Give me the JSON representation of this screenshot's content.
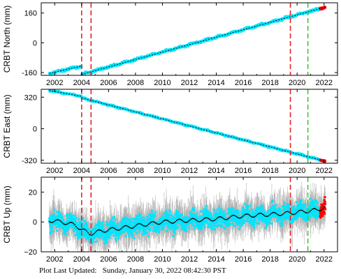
{
  "chart_data": [
    {
      "type": "scatter",
      "ylabel": "CRBT North (mm)",
      "yticks": [
        -160,
        0,
        160
      ],
      "ytick_labels": [
        "-160",
        "0",
        "160"
      ],
      "ylim": [
        -175,
        215
      ],
      "xlim": [
        2001.0,
        2023.0
      ],
      "xticks": [
        2002,
        2004,
        2006,
        2008,
        2010,
        2012,
        2014,
        2016,
        2018,
        2020,
        2022
      ],
      "xtick_labels": [
        "2002",
        "2004",
        "2006",
        "2008",
        "2010",
        "2012",
        "2014",
        "2016",
        "2018",
        "2020",
        "2022"
      ],
      "segments": [
        {
          "x": [
            2001.6,
            2004.0
          ],
          "y": [
            -165,
            -125
          ]
        },
        {
          "x": [
            2004.0,
            2022.1
          ],
          "y": [
            -170,
            192
          ]
        }
      ],
      "noise": 3,
      "point_color": "#00e5ff",
      "trend_color": "#000000",
      "recent_color": "#ff0000",
      "recent_from": 2021.7
    },
    {
      "type": "scatter",
      "ylabel": "CRBT East (mm)",
      "yticks": [
        -320,
        0,
        320
      ],
      "ytick_labels": [
        "-320",
        "0",
        "320"
      ],
      "ylim": [
        -350,
        400
      ],
      "xlim": [
        2001.0,
        2023.0
      ],
      "xticks": [
        2002,
        2004,
        2006,
        2008,
        2010,
        2012,
        2014,
        2016,
        2018,
        2020,
        2022
      ],
      "xtick_labels": [
        "2002",
        "2004",
        "2006",
        "2008",
        "2010",
        "2012",
        "2014",
        "2016",
        "2018",
        "2020",
        "2022"
      ],
      "segments": [
        {
          "x": [
            2001.6,
            2004.0
          ],
          "y": [
            388,
            328
          ]
        },
        {
          "x": [
            2004.0,
            2022.1
          ],
          "y": [
            312,
            -330
          ]
        }
      ],
      "noise": 4,
      "point_color": "#00e5ff",
      "trend_color": "#000000",
      "recent_color": "#ff0000",
      "recent_from": 2021.7
    },
    {
      "type": "scatter",
      "ylabel": "CRBT Up (mm)",
      "yticks": [
        -20,
        0,
        20
      ],
      "ytick_labels": [
        "−20",
        "0",
        "20"
      ],
      "ylim": [
        -20,
        30
      ],
      "xlim": [
        2001.0,
        2023.0
      ],
      "xticks": [
        2002,
        2004,
        2006,
        2008,
        2010,
        2012,
        2014,
        2016,
        2018,
        2020,
        2022
      ],
      "xtick_labels": [
        "2002",
        "2004",
        "2006",
        "2008",
        "2010",
        "2012",
        "2014",
        "2016",
        "2018",
        "2020",
        "2022"
      ],
      "trend": {
        "x": [
          2001.6,
          2002.5,
          2003.5,
          2004.0,
          2004.6,
          2005.5,
          2007,
          2008.5,
          2010,
          2012,
          2014,
          2016,
          2018,
          2019.6,
          2020.5,
          2021.5,
          2022.1
        ],
        "y": [
          1,
          0,
          -2,
          -5,
          -8,
          -6,
          -4,
          -2,
          0,
          1,
          2,
          4,
          5,
          6,
          7,
          8,
          10
        ]
      },
      "seasonal_amplitude": 2,
      "scatter_spread": 6,
      "error_spread": 12,
      "point_color": "#00e5ff",
      "error_color": "#b4b4b4",
      "trend_color": "#000000",
      "recent_color": "#ff0000",
      "recent_from": 2021.7
    }
  ],
  "events": [
    {
      "x": 2004.0,
      "color": "#e8202a",
      "style": "dashed"
    },
    {
      "x": 2004.7,
      "color": "#e8202a",
      "style": "dashed"
    },
    {
      "x": 2019.5,
      "color": "#e8202a",
      "style": "dashed"
    },
    {
      "x": 2020.8,
      "color": "#3cc83c",
      "style": "dashed"
    }
  ],
  "footer": {
    "label": "Plot Last Updated:",
    "value": "Sunday, January 30, 2022 08:42:30 PST"
  }
}
